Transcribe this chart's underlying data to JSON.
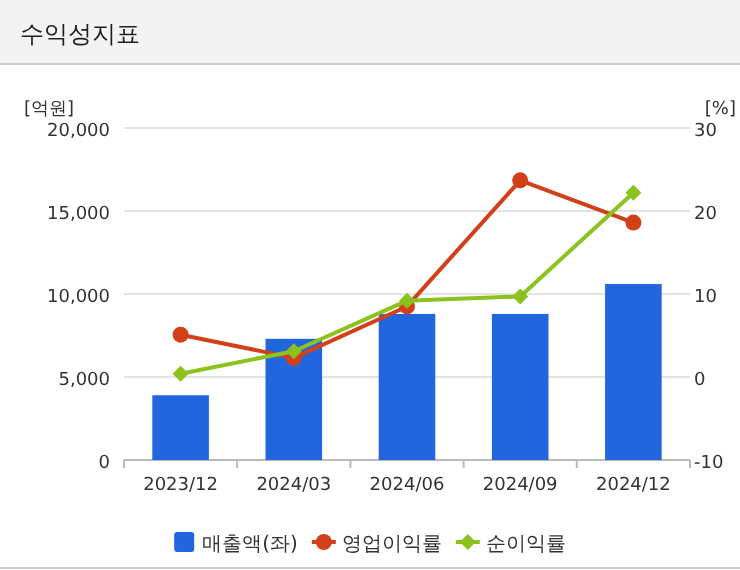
{
  "chart_data": {
    "type": "bar",
    "title": "수익성지표",
    "ylabel": "[억원]",
    "y2label": "[%]",
    "categories": [
      "2023/12",
      "2024/03",
      "2024/06",
      "2024/09",
      "2024/12"
    ],
    "series": [
      {
        "name": "매출액(좌)",
        "color": "#2266dd",
        "values": [
          3900,
          7300,
          8800,
          8800,
          10600
        ]
      },
      {
        "name": "영업이익률",
        "type": "line",
        "axis": "y2",
        "marker": "circle",
        "color": "#d2401a",
        "values": [
          5.1,
          2.3,
          8.5,
          23.7,
          18.6
        ]
      },
      {
        "name": "순이익률",
        "type": "line",
        "axis": "y2",
        "marker": "diamond",
        "color": "#8cc21e",
        "values": [
          0.4,
          3.1,
          9.2,
          9.7,
          22.2
        ]
      }
    ],
    "ylim": [
      0,
      20000
    ],
    "yticks": [
      {
        "value": 0,
        "label": "0"
      },
      {
        "value": 5000,
        "label": "5,000"
      },
      {
        "value": 10000,
        "label": "10,000"
      },
      {
        "value": 15000,
        "label": "15,000"
      },
      {
        "value": 20000,
        "label": "20,000"
      }
    ],
    "y2lim": [
      -10,
      30
    ],
    "y2ticks": [
      -10,
      0,
      10,
      20,
      30
    ],
    "grid": "y",
    "legend": "bottom"
  }
}
